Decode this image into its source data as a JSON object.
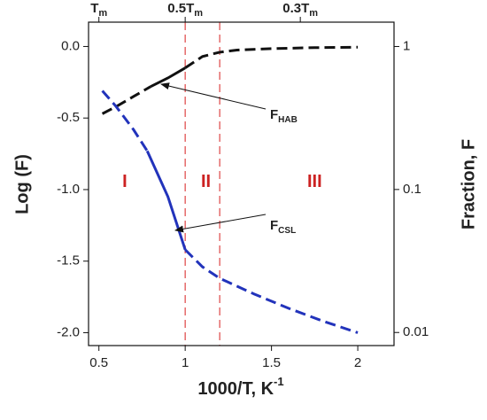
{
  "chart_data": {
    "type": "line",
    "xlabel": {
      "text": "1000/T, K",
      "sup": "-1"
    },
    "ylabel": "Log (F)",
    "y2label": "Fraction, F",
    "xlim": [
      0.44,
      2.21
    ],
    "xticks": [
      0.5,
      1.0,
      1.5,
      2.0
    ],
    "ylim": [
      -2.09,
      0.17
    ],
    "yticks": [
      {
        "value": 0,
        "label": "0.0"
      },
      -0.5,
      {
        "value": -1,
        "label": "-1.0"
      },
      -1.5,
      {
        "value": -2,
        "label": "-2.0"
      }
    ],
    "y2lim": [
      0.0081,
      1.48
    ],
    "y2ticks": [
      1,
      0.1,
      0.01
    ],
    "y2log": true,
    "x2ticks": [
      {
        "value": 0.5,
        "label": "T",
        "sub": "m"
      },
      {
        "value": 1.0,
        "label": "0.5T",
        "sub": "m"
      },
      {
        "value": 1.667,
        "label": "0.3T",
        "sub": "m"
      }
    ],
    "vlines": {
      "color": "#dd4444",
      "x": [
        1.0,
        1.2
      ]
    },
    "regions": [
      {
        "text": "I",
        "x": 0.65,
        "y": -0.95
      },
      {
        "text": "II",
        "x": 1.12,
        "y": -0.95
      },
      {
        "text": "III",
        "x": 1.75,
        "y": -0.95
      }
    ],
    "annotations": [
      {
        "text": "F",
        "sub": "HAB"
      },
      {
        "text": "F",
        "sub": "CSL"
      }
    ],
    "series": [
      {
        "color": "#111111",
        "style": "dashed",
        "x": [
          0.52,
          0.6,
          0.7,
          0.8
        ],
        "values": [
          -0.47,
          -0.42,
          -0.35,
          -0.28
        ]
      },
      {
        "color": "#111111",
        "style": "solid",
        "x": [
          0.8,
          0.9,
          1.0
        ],
        "values": [
          -0.28,
          -0.22,
          -0.15
        ]
      },
      {
        "color": "#111111",
        "style": "dashed",
        "x": [
          1.0,
          1.1,
          1.2,
          1.3,
          1.5,
          1.75,
          2.0
        ],
        "values": [
          -0.15,
          -0.07,
          -0.04,
          -0.025,
          -0.015,
          -0.008,
          -0.005
        ]
      },
      {
        "color": "#2233bb",
        "style": "dashed",
        "x": [
          0.52,
          0.6,
          0.7,
          0.78
        ],
        "values": [
          -0.31,
          -0.42,
          -0.58,
          -0.73
        ]
      },
      {
        "color": "#2233bb",
        "style": "solid",
        "x": [
          0.78,
          0.9,
          1.0
        ],
        "values": [
          -0.73,
          -1.05,
          -1.42
        ]
      },
      {
        "color": "#2233bb",
        "style": "dashed",
        "x": [
          1.0,
          1.1,
          1.2,
          1.4,
          1.6,
          1.8,
          2.0
        ],
        "values": [
          -1.42,
          -1.54,
          -1.62,
          -1.73,
          -1.83,
          -1.92,
          -2.0
        ]
      }
    ]
  }
}
